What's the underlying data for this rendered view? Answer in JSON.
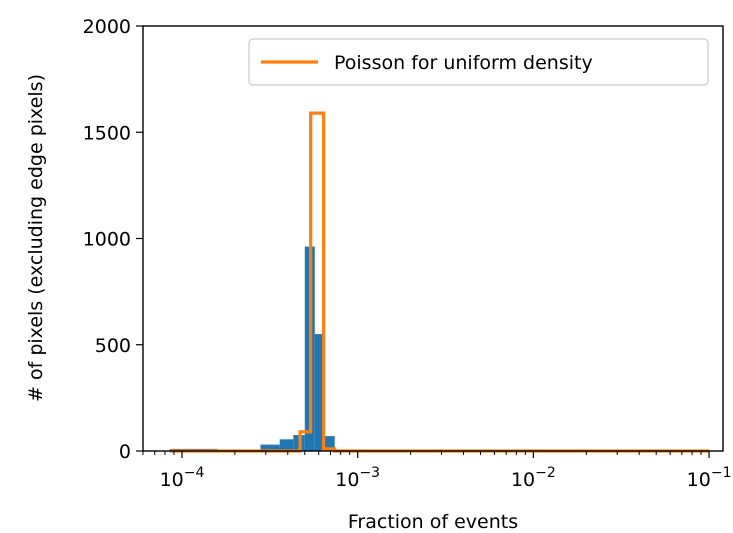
{
  "chart_data": {
    "type": "histogram",
    "xscale": "log",
    "xlim": [
      6e-05,
      0.12
    ],
    "ylim": [
      0,
      2000
    ],
    "xlabel": "Fraction of events",
    "ylabel": "# of pixels (excluding edge pixels)",
    "xticks": [
      {
        "value": 0.0001,
        "base": "10",
        "exp": "−4"
      },
      {
        "value": 0.001,
        "base": "10",
        "exp": "−3"
      },
      {
        "value": 0.01,
        "base": "10",
        "exp": "−2"
      },
      {
        "value": 0.1,
        "base": "10",
        "exp": "−1"
      }
    ],
    "yticks": [
      {
        "value": 0,
        "label": "0"
      },
      {
        "value": 500,
        "label": "500"
      },
      {
        "value": 1000,
        "label": "1000"
      },
      {
        "value": 1500,
        "label": "1500"
      },
      {
        "value": 2000,
        "label": "2000"
      }
    ],
    "grid": false,
    "legend_position": "top-right",
    "series": [
      {
        "kind": "bars",
        "color": "#1f77b4",
        "bins": [
          {
            "x0": 8.5e-05,
            "x1": 0.000105,
            "value": 10
          },
          {
            "x0": 0.000105,
            "x1": 0.00013,
            "value": 10
          },
          {
            "x0": 0.00013,
            "x1": 0.00016,
            "value": 10
          },
          {
            "x0": 0.00016,
            "x1": 0.0002,
            "value": 5
          },
          {
            "x0": 0.0002,
            "x1": 0.00023,
            "value": 3
          },
          {
            "x0": 0.00023,
            "x1": 0.00028,
            "value": 6
          },
          {
            "x0": 0.00028,
            "x1": 0.00036,
            "value": 30
          },
          {
            "x0": 0.00036,
            "x1": 0.00043,
            "value": 55
          },
          {
            "x0": 0.00043,
            "x1": 0.0005,
            "value": 75
          },
          {
            "x0": 0.0005,
            "x1": 0.00057,
            "value": 962
          },
          {
            "x0": 0.00057,
            "x1": 0.00065,
            "value": 550
          },
          {
            "x0": 0.00065,
            "x1": 0.00074,
            "value": 70
          },
          {
            "x0": 0.00074,
            "x1": 0.00085,
            "value": 6
          }
        ]
      },
      {
        "kind": "step",
        "name": "Poisson for uniform density",
        "color": "#ff7f0e",
        "points": [
          [
            8.5e-05,
            0
          ],
          [
            0.00047,
            0
          ],
          [
            0.00047,
            90
          ],
          [
            0.00054,
            90
          ],
          [
            0.00054,
            1590
          ],
          [
            0.00064,
            1590
          ],
          [
            0.00064,
            10
          ],
          [
            0.00074,
            10
          ],
          [
            0.00074,
            0
          ],
          [
            0.1,
            0
          ]
        ]
      }
    ]
  }
}
